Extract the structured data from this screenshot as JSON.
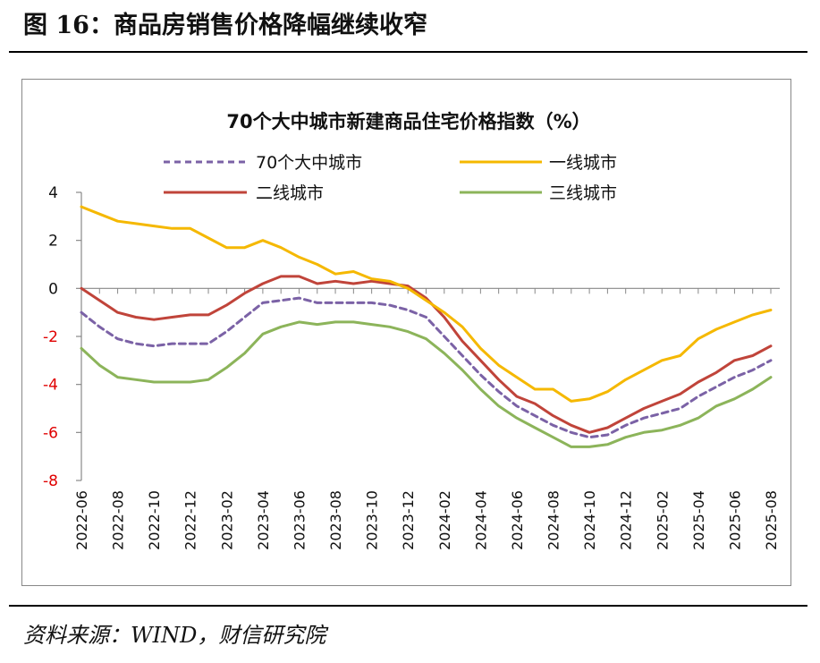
{
  "figure": {
    "title": "图 16：商品房销售价格降幅继续收窄",
    "source": "资料来源：WIND，财信研究院"
  },
  "colors": {
    "national": "#7B62A6",
    "tier1": "#F5B800",
    "tier2": "#C0443A",
    "tier3": "#8CB45A",
    "negative_tick": "#E00000"
  },
  "chart_data": {
    "type": "line",
    "title": "70个大中城市新建商品住宅价格指数（%）",
    "xlabel": "",
    "ylabel": "",
    "ylim": [
      -8,
      4
    ],
    "yticks": [
      4,
      2,
      0,
      -2,
      -4,
      -6,
      -8
    ],
    "grid": false,
    "legend_position": "top",
    "x": [
      "2022-06",
      "2022-07",
      "2022-08",
      "2022-09",
      "2022-10",
      "2022-11",
      "2022-12",
      "2023-01",
      "2023-02",
      "2023-03",
      "2023-04",
      "2023-05",
      "2023-06",
      "2023-07",
      "2023-08",
      "2023-09",
      "2023-10",
      "2023-11",
      "2023-12",
      "2024-01",
      "2024-02",
      "2024-03",
      "2024-04",
      "2024-05",
      "2024-06",
      "2024-07",
      "2024-08",
      "2024-09",
      "2024-10",
      "2024-11",
      "2024-12",
      "2025-01",
      "2025-02",
      "2025-03",
      "2025-04",
      "2025-05",
      "2025-06",
      "2025-07",
      "2025-08"
    ],
    "xtick_labels": [
      "2022-06",
      "2022-08",
      "2022-10",
      "2022-12",
      "2023-02",
      "2023-04",
      "2023-06",
      "2023-08",
      "2023-10",
      "2023-12",
      "2024-02",
      "2024-04",
      "2024-06",
      "2024-08",
      "2024-10",
      "2024-12",
      "2025-02",
      "2025-04",
      "2025-06",
      "2025-08"
    ],
    "series": [
      {
        "name": "70个大中城市",
        "style": "dashed",
        "color": "#7B62A6",
        "values": [
          -1.0,
          -1.6,
          -2.1,
          -2.3,
          -2.4,
          -2.3,
          -2.3,
          -2.3,
          -1.8,
          -1.2,
          -0.6,
          -0.5,
          -0.4,
          -0.6,
          -0.6,
          -0.6,
          -0.6,
          -0.7,
          -0.9,
          -1.2,
          -2.0,
          -2.8,
          -3.6,
          -4.3,
          -4.9,
          -5.3,
          -5.7,
          -6.0,
          -6.2,
          -6.1,
          -5.7,
          -5.4,
          -5.2,
          -5.0,
          -4.5,
          -4.1,
          -3.7,
          -3.4,
          -3.0
        ]
      },
      {
        "name": "一线城市",
        "style": "solid",
        "color": "#F5B800",
        "values": [
          3.4,
          3.1,
          2.8,
          2.7,
          2.6,
          2.5,
          2.5,
          2.1,
          1.7,
          1.7,
          2.0,
          1.7,
          1.3,
          1.0,
          0.6,
          0.7,
          0.4,
          0.3,
          0.0,
          -0.5,
          -1.0,
          -1.6,
          -2.5,
          -3.2,
          -3.7,
          -4.2,
          -4.2,
          -4.7,
          -4.6,
          -4.3,
          -3.8,
          -3.4,
          -3.0,
          -2.8,
          -2.1,
          -1.7,
          -1.4,
          -1.1,
          -0.9
        ]
      },
      {
        "name": "二线城市",
        "style": "solid",
        "color": "#C0443A",
        "values": [
          0.0,
          -0.5,
          -1.0,
          -1.2,
          -1.3,
          -1.2,
          -1.1,
          -1.1,
          -0.7,
          -0.2,
          0.2,
          0.5,
          0.5,
          0.2,
          0.3,
          0.2,
          0.3,
          0.2,
          0.1,
          -0.4,
          -1.2,
          -2.2,
          -3.0,
          -3.8,
          -4.5,
          -4.8,
          -5.3,
          -5.7,
          -6.0,
          -5.8,
          -5.4,
          -5.0,
          -4.7,
          -4.4,
          -3.9,
          -3.5,
          -3.0,
          -2.8,
          -2.4
        ]
      },
      {
        "name": "三线城市",
        "style": "solid",
        "color": "#8CB45A",
        "values": [
          -2.5,
          -3.2,
          -3.7,
          -3.8,
          -3.9,
          -3.9,
          -3.9,
          -3.8,
          -3.3,
          -2.7,
          -1.9,
          -1.6,
          -1.4,
          -1.5,
          -1.4,
          -1.4,
          -1.5,
          -1.6,
          -1.8,
          -2.1,
          -2.7,
          -3.4,
          -4.2,
          -4.9,
          -5.4,
          -5.8,
          -6.2,
          -6.6,
          -6.6,
          -6.5,
          -6.2,
          -6.0,
          -5.9,
          -5.7,
          -5.4,
          -4.9,
          -4.6,
          -4.2,
          -3.7
        ]
      }
    ]
  }
}
